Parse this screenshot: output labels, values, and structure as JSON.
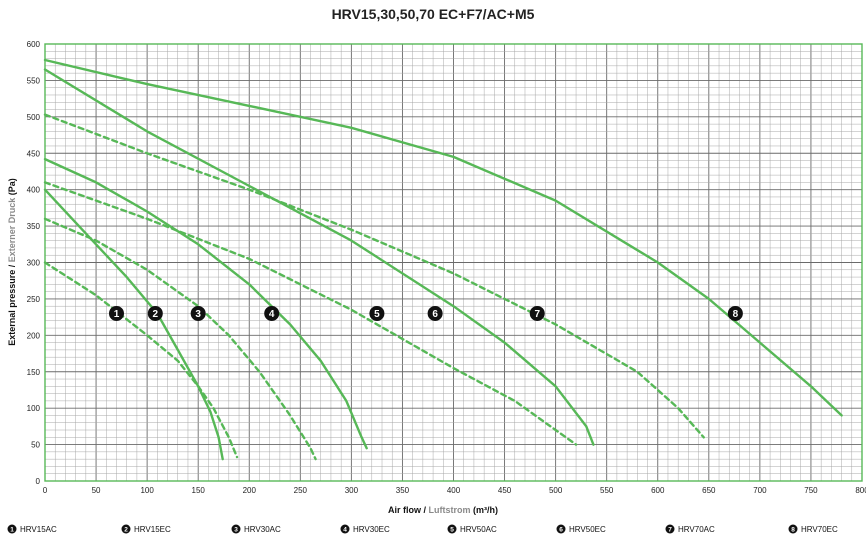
{
  "chart_data": {
    "type": "line",
    "title": "HRV15,30,50,70 EC+F7/AC+M5",
    "xlabel_main": "Air flow",
    "xlabel_sep": " / ",
    "xlabel_alt": "Luftstrom",
    "xlabel_unit": " (m³/h)",
    "ylabel_main": "External pressure",
    "ylabel_sep": " / ",
    "ylabel_alt": "Externer Druck",
    "ylabel_unit": " (Pa)",
    "xlim": [
      0,
      800
    ],
    "ylim": [
      0,
      600
    ],
    "xticks": [
      0,
      50,
      100,
      150,
      200,
      250,
      300,
      350,
      400,
      450,
      500,
      550,
      600,
      650,
      700,
      750,
      800
    ],
    "yticks": [
      0,
      50,
      100,
      150,
      200,
      250,
      300,
      350,
      400,
      450,
      500,
      550,
      600
    ],
    "grid": true,
    "legend_position": "bottom",
    "series": [
      {
        "marker": "1",
        "name": "HRV15AC",
        "style": "dashed",
        "x": [
          0,
          50,
          100,
          130,
          150,
          165,
          180,
          188
        ],
        "y": [
          300,
          255,
          200,
          165,
          130,
          100,
          60,
          33
        ],
        "label_at": [
          70,
          230
        ]
      },
      {
        "marker": "2",
        "name": "HRV15EC",
        "style": "solid",
        "x": [
          0,
          40,
          80,
          110,
          130,
          150,
          162,
          170,
          174
        ],
        "y": [
          400,
          340,
          280,
          230,
          180,
          130,
          95,
          60,
          30
        ],
        "label_at": [
          108,
          230
        ]
      },
      {
        "marker": "3",
        "name": "HRV30AC",
        "style": "dashed",
        "x": [
          0,
          50,
          100,
          150,
          180,
          210,
          240,
          260,
          265
        ],
        "y": [
          360,
          330,
          290,
          240,
          200,
          150,
          90,
          45,
          30
        ],
        "label_at": [
          150,
          230
        ]
      },
      {
        "marker": "4",
        "name": "HRV30EC",
        "style": "solid",
        "x": [
          0,
          50,
          100,
          150,
          200,
          240,
          270,
          295,
          310,
          315
        ],
        "y": [
          442,
          410,
          370,
          325,
          270,
          215,
          165,
          110,
          60,
          45
        ],
        "label_at": [
          222,
          230
        ]
      },
      {
        "marker": "5",
        "name": "HRV50AC",
        "style": "dashed",
        "x": [
          0,
          100,
          200,
          300,
          400,
          460,
          500,
          520
        ],
        "y": [
          410,
          360,
          305,
          235,
          155,
          110,
          70,
          50
        ],
        "label_at": [
          325,
          230
        ]
      },
      {
        "marker": "6",
        "name": "HRV50EC",
        "style": "solid",
        "x": [
          0,
          100,
          200,
          300,
          400,
          450,
          500,
          530,
          537
        ],
        "y": [
          565,
          480,
          405,
          330,
          240,
          190,
          130,
          75,
          50
        ],
        "label_at": [
          382,
          230
        ]
      },
      {
        "marker": "7",
        "name": "HRV70AC",
        "style": "dashed",
        "x": [
          0,
          100,
          200,
          300,
          400,
          500,
          580,
          620,
          645
        ],
        "y": [
          503,
          450,
          400,
          345,
          285,
          215,
          150,
          100,
          60
        ],
        "label_at": [
          482,
          230
        ]
      },
      {
        "marker": "8",
        "name": "HRV70EC",
        "style": "solid",
        "x": [
          0,
          100,
          200,
          300,
          400,
          500,
          600,
          650,
          700,
          750,
          780
        ],
        "y": [
          578,
          545,
          515,
          485,
          445,
          385,
          300,
          250,
          190,
          130,
          90
        ],
        "label_at": [
          676,
          230
        ]
      }
    ]
  },
  "colors": {
    "curve": "#57b857",
    "grid_major": "#6a6a6a",
    "grid_minor": "#a8a8a8",
    "marker_fill": "#111111",
    "marker_text": "#ffffff"
  }
}
